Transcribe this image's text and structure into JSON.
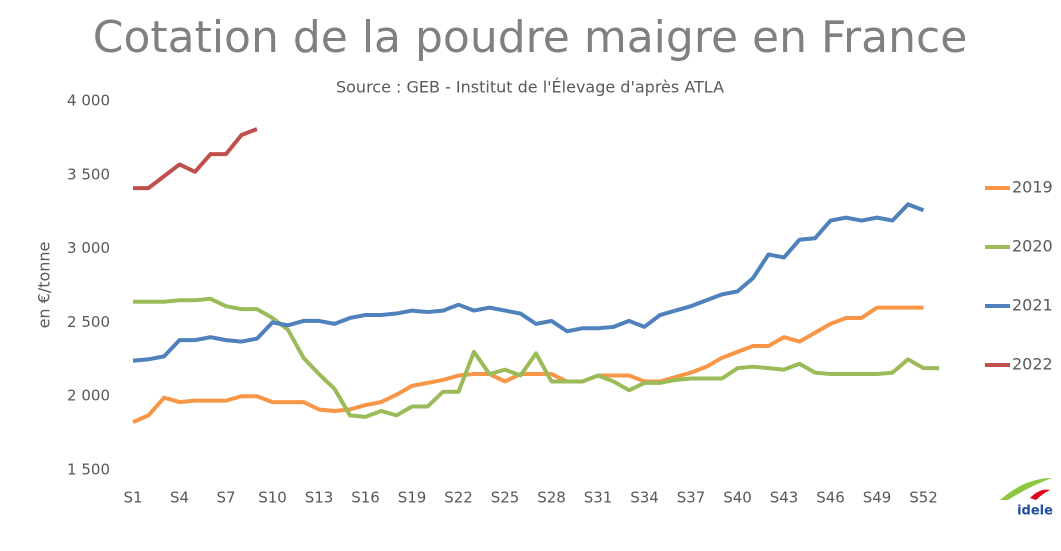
{
  "chart_data": {
    "type": "line",
    "title": "Cotation de la poudre maigre en France",
    "subtitle": "Source : GEB - Institut de l'Élevage d'après ATLA",
    "y_label": "en €/tonne",
    "logo": "idele",
    "categories": [
      "S1",
      null,
      null,
      "S4",
      null,
      null,
      "S7",
      null,
      null,
      "S10",
      null,
      null,
      "S13",
      null,
      null,
      "S16",
      null,
      null,
      "S19",
      null,
      null,
      "S22",
      null,
      null,
      "S25",
      null,
      null,
      "S28",
      null,
      null,
      "S31",
      null,
      null,
      "S34",
      null,
      null,
      "S37",
      null,
      null,
      "S40",
      null,
      null,
      "S43",
      null,
      null,
      "S46",
      null,
      null,
      "S49",
      null,
      null,
      "S52",
      null
    ],
    "ylim": [
      1500,
      4000
    ],
    "yticks": [
      {
        "value": 1500,
        "label": "1 500"
      },
      {
        "value": 2000,
        "label": "2 000"
      },
      {
        "value": 2500,
        "label": "2 500"
      },
      {
        "value": 3000,
        "label": "3 000"
      },
      {
        "value": 3500,
        "label": "3 500"
      },
      {
        "value": 4000,
        "label": "4 000"
      }
    ],
    "grid": false,
    "legend": "right",
    "series": [
      {
        "name": "2019",
        "color": "#f79646",
        "values": [
          1825,
          1870,
          1990,
          1960,
          1970,
          1970,
          1970,
          2000,
          2000,
          1960,
          1960,
          1960,
          1910,
          1900,
          1910,
          1940,
          1960,
          2010,
          2070,
          2090,
          2110,
          2140,
          2150,
          2150,
          2100,
          2150,
          2150,
          2150,
          2100,
          2100,
          2140,
          2140,
          2140,
          2100,
          2100,
          2130,
          2160,
          2200,
          2260,
          2300,
          2340,
          2340,
          2400,
          2370,
          2430,
          2490,
          2530,
          2530,
          2600,
          2600,
          2600,
          2600,
          null
        ]
      },
      {
        "name": "2020",
        "color": "#9bbb59",
        "values": [
          2640,
          2640,
          2640,
          2650,
          2650,
          2660,
          2610,
          2590,
          2590,
          2530,
          2450,
          2260,
          2150,
          2050,
          1870,
          1860,
          1900,
          1870,
          1930,
          1930,
          2030,
          2030,
          2300,
          2150,
          2180,
          2140,
          2290,
          2100,
          2100,
          2100,
          2140,
          2100,
          2040,
          2090,
          2090,
          2110,
          2120,
          2120,
          2120,
          2190,
          2200,
          2190,
          2180,
          2220,
          2160,
          2150,
          2150,
          2150,
          2150,
          2160,
          2250,
          2190,
          2190
        ]
      },
      {
        "name": "2021",
        "color": "#4f81bd",
        "values": [
          2240,
          2250,
          2270,
          2380,
          2380,
          2400,
          2380,
          2370,
          2390,
          2500,
          2480,
          2510,
          2510,
          2490,
          2530,
          2550,
          2550,
          2560,
          2580,
          2570,
          2580,
          2620,
          2580,
          2600,
          2580,
          2560,
          2490,
          2510,
          2440,
          2460,
          2460,
          2470,
          2510,
          2470,
          2550,
          2580,
          2610,
          2650,
          2690,
          2710,
          2800,
          2960,
          2940,
          3060,
          3070,
          3190,
          3210,
          3190,
          3210,
          3190,
          3300,
          3260,
          null
        ]
      },
      {
        "name": "2022",
        "color": "#c0504d",
        "values": [
          3410,
          3410,
          3490,
          3570,
          3520,
          3640,
          3640,
          3770,
          3810,
          null,
          null,
          null,
          null,
          null,
          null,
          null,
          null,
          null,
          null,
          null,
          null,
          null,
          null,
          null,
          null,
          null,
          null,
          null,
          null,
          null,
          null,
          null,
          null,
          null,
          null,
          null,
          null,
          null,
          null,
          null,
          null,
          null,
          null,
          null,
          null,
          null,
          null,
          null,
          null,
          null,
          null,
          null,
          null
        ]
      }
    ]
  }
}
